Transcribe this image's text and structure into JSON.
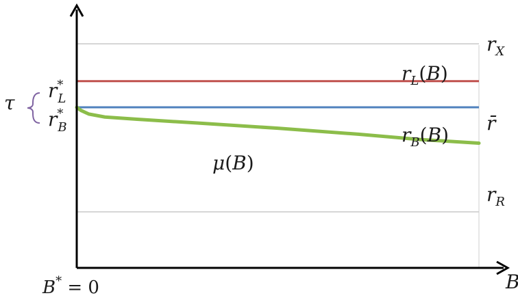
{
  "chart_data": {
    "type": "line",
    "xlabel": "B",
    "origin_label": {
      "var": "B",
      "sup": "*",
      "rest": " = 0"
    },
    "hlines": [
      {
        "key": "rX",
        "base": "r",
        "sub": "X",
        "color": "#c8c8c8",
        "y": 3.0
      },
      {
        "key": "rL",
        "base": "r",
        "sub": "L",
        "color": "#c0504d",
        "y": 2.5,
        "series_label": "r_L(B)"
      },
      {
        "key": "rB",
        "base": "r",
        "sub": "B",
        "color": "#4f81bd",
        "y": 2.15,
        "series_label": "r_B(B)"
      },
      {
        "key": "rR",
        "base": "r",
        "sub": "R",
        "color": "#c8c8c8",
        "y": 0.75
      }
    ],
    "series": [
      {
        "name": "r_L(B)",
        "color": "#c0504d",
        "x": [
          0,
          1
        ],
        "values": [
          2.5,
          2.5
        ]
      },
      {
        "name": "r_B(B)",
        "color": "#4f81bd",
        "x": [
          0,
          1
        ],
        "values": [
          2.15,
          2.15
        ]
      },
      {
        "name": "μ(B)",
        "color": "#8cbd4a",
        "x": [
          0,
          0.01,
          0.03,
          0.07,
          0.15,
          0.3,
          0.5,
          0.7,
          0.85,
          1.0
        ],
        "values": [
          2.15,
          2.11,
          2.06,
          2.02,
          1.99,
          1.94,
          1.87,
          1.79,
          1.72,
          1.67
        ]
      }
    ],
    "right_labels": {
      "rX": "r_X",
      "rbar": "r̄",
      "rR": "r_R"
    },
    "left_labels": {
      "rL_star": {
        "base": "r",
        "sub": "L",
        "sup": "*"
      },
      "rB_star": {
        "base": "r",
        "sub": "B",
        "sup": "*"
      }
    },
    "annotation": {
      "text": "τ",
      "color": "#8064a2"
    },
    "xlim": [
      0,
      1
    ],
    "ylim": [
      -0.0,
      3.45
    ]
  }
}
